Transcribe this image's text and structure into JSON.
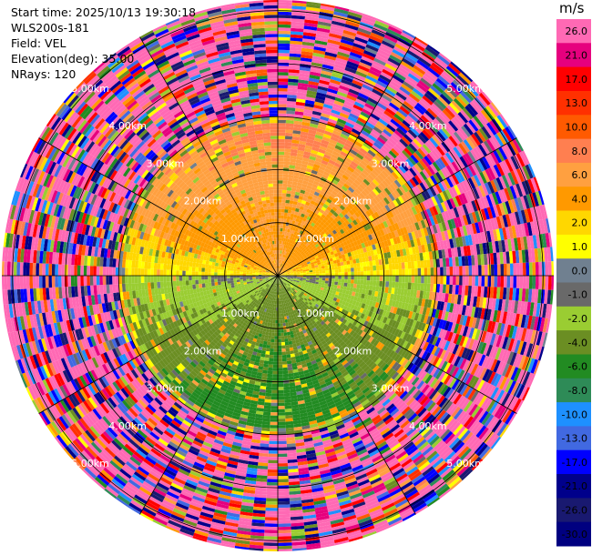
{
  "header": {
    "start_time": "Start time: 2025/10/13 19:30:18",
    "instrument": "WLS200s-181",
    "field": "Field: VEL",
    "elevation": "Elevation(deg): 35.00",
    "nrays": "NRays: 120"
  },
  "colorbar": {
    "unit": "m/s",
    "ticks": [
      "26.0",
      "21.0",
      "17.0",
      "13.0",
      "10.0",
      "8.0",
      "6.0",
      "4.0",
      "2.0",
      "1.0",
      "0.0",
      "-1.0",
      "-2.0",
      "-4.0",
      "-6.0",
      "-8.0",
      "-10.0",
      "-13.0",
      "-17.0",
      "-21.0",
      "-26.0",
      "-30.0"
    ],
    "colors": [
      "#ff69b4",
      "#e6007e",
      "#ff0000",
      "#ff3000",
      "#ff5a00",
      "#ff7f50",
      "#ffa040",
      "#ff9900",
      "#ffd700",
      "#ffff00",
      "#708090",
      "#696969",
      "#9acd32",
      "#6b8e23",
      "#228b22",
      "#2e8b57",
      "#1e90ff",
      "#4169e1",
      "#0000ff",
      "#00008b",
      "#191970",
      "#000080"
    ]
  },
  "chart_data": {
    "type": "heatmap",
    "subtype": "ppi-polar-scan",
    "field": "VEL",
    "units": "m/s",
    "value_range": [
      -30,
      30
    ],
    "nrays": 120,
    "elevation_deg": 35.0,
    "max_range_km": 5.2,
    "range_rings_km": [
      1.0,
      2.0,
      3.0,
      4.0,
      5.0
    ],
    "ring_labels": [
      "1.00km",
      "2.00km",
      "3.00km",
      "4.00km",
      "5.00km"
    ],
    "spokes_deg": [
      0,
      30,
      60,
      90,
      120,
      150,
      180,
      210,
      240,
      270,
      300,
      330
    ],
    "pattern": {
      "north_half_inner_m_s": 3.0,
      "south_half_inner_m_s": -4.0,
      "coherent_radius_km": 2.9,
      "noise_beyond_km": 3.0
    }
  }
}
